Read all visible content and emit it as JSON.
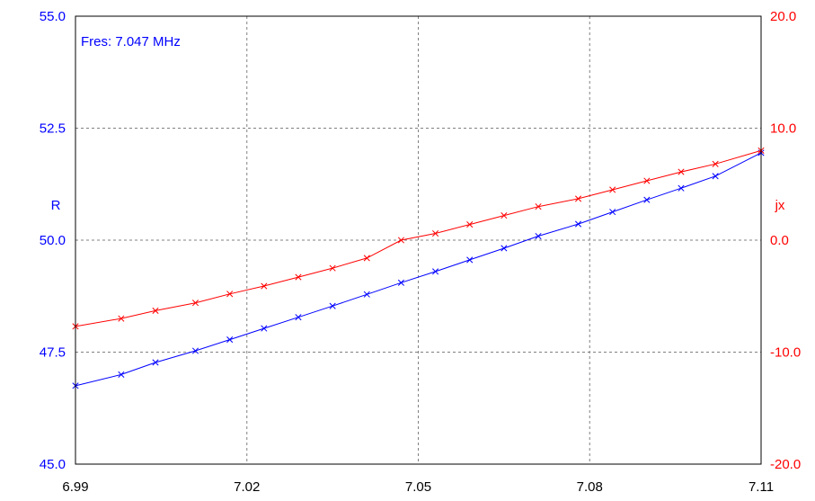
{
  "chart_data": {
    "type": "line",
    "annotation": "Fres: 7.047 MHz",
    "x_ticks": [
      "6.99",
      "7.02",
      "7.05",
      "7.08",
      "7.11"
    ],
    "x_tick_values": [
      6.99,
      7.02,
      7.05,
      7.08,
      7.11
    ],
    "xlim": [
      6.99,
      7.11
    ],
    "left_axis": {
      "label": "R",
      "ylim": [
        45.0,
        55.0
      ],
      "ticks": [
        "45.0",
        "47.5",
        "50.0",
        "52.5",
        "55.0"
      ],
      "tick_values": [
        45.0,
        47.5,
        50.0,
        52.5,
        55.0
      ],
      "color": "#0000ff"
    },
    "right_axis": {
      "label": "jx",
      "ylim": [
        -20.0,
        20.0
      ],
      "ticks": [
        "-20.0",
        "-10.0",
        "0.0",
        "10.0",
        "20.0"
      ],
      "tick_values": [
        -20.0,
        -10.0,
        0.0,
        10.0,
        20.0
      ],
      "color": "#ff0000"
    },
    "grid": true,
    "series": [
      {
        "axis": "left",
        "color": "#0000ff",
        "x": [
          6.99,
          6.998,
          7.004,
          7.011,
          7.017,
          7.023,
          7.029,
          7.035,
          7.041,
          7.047,
          7.053,
          7.059,
          7.065,
          7.071,
          7.078,
          7.084,
          7.09,
          7.096,
          7.102,
          7.11
        ],
        "values": [
          46.75,
          47.0,
          47.27,
          47.53,
          47.78,
          48.03,
          48.28,
          48.53,
          48.79,
          49.05,
          49.3,
          49.56,
          49.82,
          50.09,
          50.36,
          50.63,
          50.9,
          51.16,
          51.43,
          51.95
        ]
      },
      {
        "axis": "right",
        "color": "#ff0000",
        "x": [
          6.99,
          6.998,
          7.004,
          7.011,
          7.017,
          7.023,
          7.029,
          7.035,
          7.041,
          7.047,
          7.053,
          7.059,
          7.065,
          7.071,
          7.078,
          7.084,
          7.09,
          7.096,
          7.102,
          7.11
        ],
        "values": [
          -7.7,
          -7.0,
          -6.3,
          -5.6,
          -4.8,
          -4.1,
          -3.3,
          -2.5,
          -1.6,
          0.0,
          0.6,
          1.4,
          2.2,
          3.0,
          3.7,
          4.5,
          5.3,
          6.1,
          6.8,
          8.0
        ]
      }
    ]
  }
}
